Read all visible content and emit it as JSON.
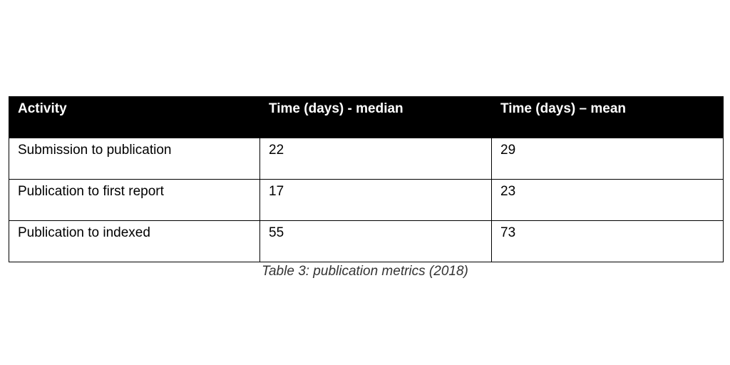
{
  "table": {
    "headers": [
      "Activity",
      "Time (days) - median",
      "Time (days) – mean"
    ],
    "rows": [
      [
        "Submission to publication",
        "22",
        "29"
      ],
      [
        "Publication to first report",
        "17",
        "23"
      ],
      [
        "Publication to indexed",
        "55",
        "73"
      ]
    ],
    "header_bg": "#000000",
    "header_text_color": "#ffffff"
  },
  "caption": "Table 3: publication metrics (2018)"
}
